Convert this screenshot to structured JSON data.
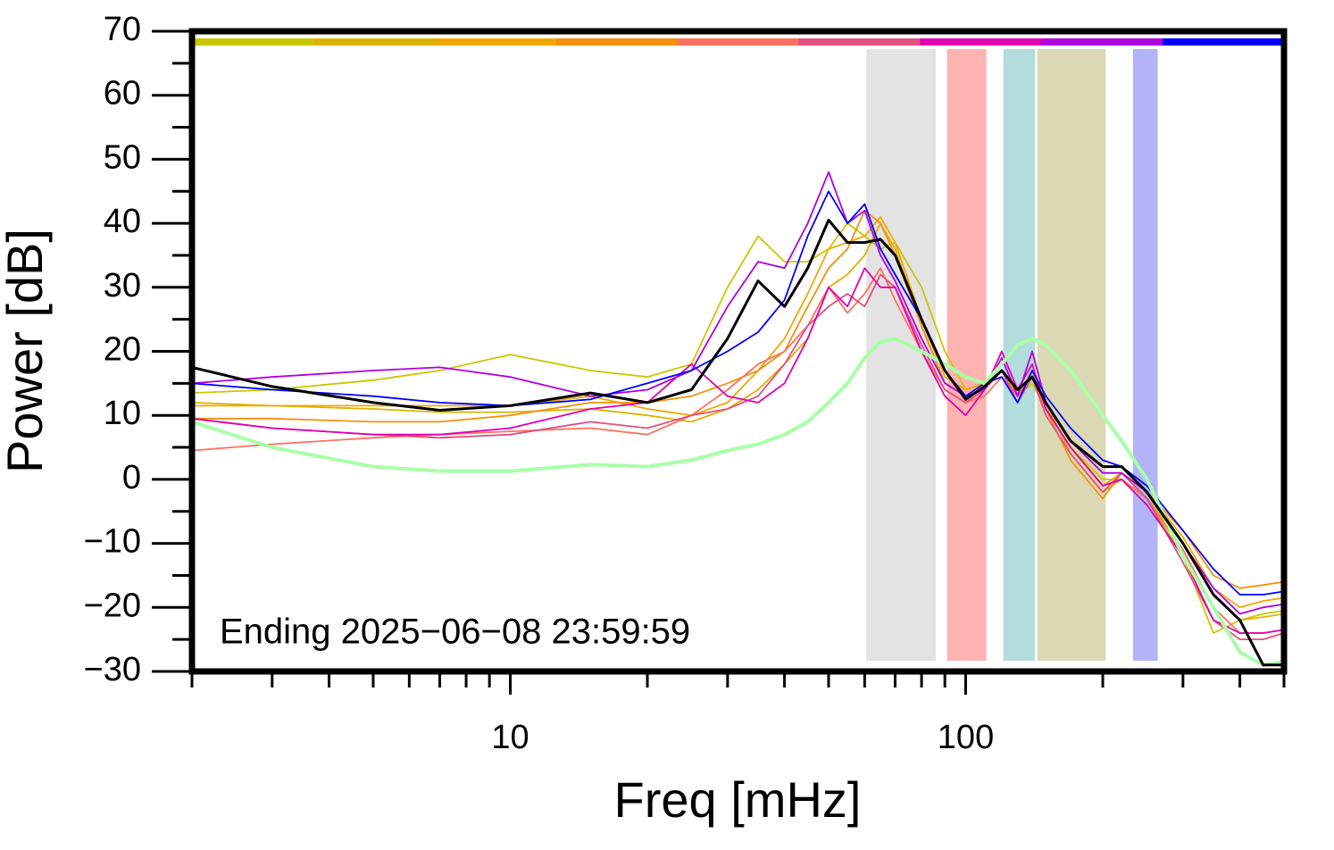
{
  "chart_data": {
    "type": "line",
    "xlabel": "Freq [mHz]",
    "ylabel": "Power [dB]",
    "annotation": "Ending 2025−06−08 23:59:59",
    "xscale": "log",
    "xlim": [
      2,
      500
    ],
    "ylim": [
      -30,
      70
    ],
    "xticks": [
      10,
      100
    ],
    "xminorticks": [
      2,
      3,
      4,
      5,
      6,
      7,
      8,
      9,
      20,
      30,
      40,
      50,
      60,
      70,
      80,
      90,
      200,
      300,
      400,
      500
    ],
    "yticks": [
      {
        "value": -30,
        "label": "−30"
      },
      {
        "value": -20,
        "label": "−20"
      },
      {
        "value": -10,
        "label": "−10"
      },
      0,
      10,
      20,
      30,
      40,
      50,
      60,
      70
    ],
    "yminorticks": [
      -25,
      -15,
      -5,
      5,
      15,
      25,
      35,
      45,
      55,
      65
    ],
    "bands": [
      {
        "from": 60.5,
        "to": 86,
        "color": "#e3e3e3"
      },
      {
        "from": 91,
        "to": 111,
        "color": "#ffb3b0"
      },
      {
        "from": 121,
        "to": 142,
        "color": "#b3dcdc"
      },
      {
        "from": 143.6,
        "to": 203,
        "color": "#dad9b3"
      },
      {
        "from": 233,
        "to": 264,
        "color": "#b3b3f8"
      }
    ],
    "x": [
      2,
      3,
      5,
      7,
      10,
      15,
      20,
      25,
      30,
      35,
      40,
      45,
      50,
      55,
      60,
      65,
      70,
      80,
      90,
      100,
      110,
      120,
      130,
      140,
      150,
      170,
      200,
      220,
      250,
      300,
      350,
      400,
      450,
      500
    ],
    "series": [
      {
        "color": "#c8c800",
        "values": [
          13.5,
          14,
          15.5,
          17,
          19.5,
          17,
          16,
          18,
          30,
          38,
          34,
          34,
          36,
          40,
          38,
          36,
          37,
          30,
          20,
          14,
          15,
          16,
          13,
          15,
          11,
          5,
          0,
          0,
          -3,
          -12,
          -24,
          -22,
          -21,
          -20.5
        ]
      },
      {
        "color": "#dcb400",
        "values": [
          12,
          11.5,
          11,
          10.5,
          10.5,
          11,
          10,
          9,
          11,
          14,
          18,
          22,
          30,
          32,
          35,
          40,
          36,
          24,
          15,
          13,
          15,
          17,
          13,
          16,
          12,
          4,
          -2,
          0,
          -3,
          -10,
          -18,
          -22,
          -21.5,
          -21
        ]
      },
      {
        "color": "#f0a800",
        "values": [
          11.5,
          11.5,
          11.5,
          11.5,
          11.5,
          13,
          11,
          10,
          12,
          17,
          22,
          29,
          36,
          37,
          38,
          41,
          37,
          25,
          16,
          14,
          15,
          16,
          13,
          16,
          11,
          5,
          -1,
          1,
          -2,
          -9,
          -17,
          -20,
          -19,
          -18.5
        ]
      },
      {
        "color": "#f5900c",
        "values": [
          9.5,
          9.5,
          9,
          9,
          10,
          12,
          12,
          13,
          15,
          17,
          20,
          27,
          33,
          36,
          42,
          40,
          35,
          24,
          15,
          13,
          15,
          17,
          13,
          17,
          11,
          3,
          -3,
          1,
          -2,
          -8,
          -15,
          -17,
          -16.5,
          -16
        ]
      },
      {
        "color": "#ff7060",
        "values": [
          4.5,
          5.5,
          6.5,
          7,
          7.5,
          8,
          7,
          10,
          14,
          18,
          20,
          24,
          30,
          26,
          29,
          33,
          28,
          20,
          14,
          12,
          13,
          16,
          13,
          16,
          11,
          5,
          -1,
          0,
          -3,
          -11,
          -20,
          -24,
          -24,
          -23.5
        ]
      },
      {
        "color": "#e05080",
        "values": [
          9.5,
          8,
          7,
          6.5,
          7,
          9,
          8,
          10,
          11,
          13,
          18,
          24,
          27,
          29,
          27,
          32,
          30,
          21,
          14,
          12,
          14,
          17,
          12,
          16,
          10,
          4,
          -2,
          1,
          -3,
          -13,
          -22,
          -25,
          -25,
          -24
        ]
      },
      {
        "color": "#e000b0",
        "values": [
          9.5,
          8,
          7,
          7,
          8,
          11,
          12,
          18,
          13,
          12,
          15,
          22,
          30,
          27,
          33,
          30,
          30,
          20,
          13,
          10,
          14,
          20,
          14,
          18,
          11,
          5,
          -1,
          0,
          -4,
          -12,
          -22,
          -24,
          -24,
          -23.5
        ]
      },
      {
        "color": "#b000e0",
        "values": [
          15,
          16,
          17,
          17.5,
          16,
          13,
          14,
          17,
          27,
          34,
          33,
          40,
          48,
          40,
          42,
          35,
          31,
          22,
          15,
          13,
          14,
          19,
          13,
          20,
          12,
          6,
          1,
          1,
          -2,
          -10,
          -17,
          -21,
          -20,
          -19.5
        ]
      },
      {
        "color": "#0000ff",
        "values": [
          15,
          14,
          13,
          12,
          11.5,
          12.5,
          15,
          17,
          20,
          23,
          28,
          38,
          45,
          40,
          43,
          36,
          32,
          25,
          17,
          13,
          15,
          16,
          12,
          17,
          13,
          8,
          3,
          2,
          -1,
          -8,
          -14,
          -18,
          -18,
          -17.5
        ]
      },
      {
        "color": "#a8ffa8",
        "width": 4,
        "values": [
          9,
          5,
          2,
          1.3,
          1.3,
          2.3,
          2,
          3,
          4.5,
          5.5,
          7,
          9,
          12,
          15,
          19,
          21.5,
          22,
          20,
          18,
          16,
          15,
          18,
          21,
          22,
          21,
          17,
          10,
          6,
          0,
          -12,
          -20,
          -27,
          -29,
          -28.5
        ]
      },
      {
        "color": "#000000",
        "width": 3,
        "values": [
          17.5,
          14.5,
          12,
          10.8,
          11.5,
          13.5,
          12,
          14,
          22,
          31,
          27,
          33,
          40.5,
          37,
          37,
          37.5,
          35,
          25,
          17,
          12.5,
          14.5,
          17,
          14,
          16,
          12,
          6,
          2,
          2,
          -2,
          -10,
          -18,
          -22,
          -29,
          -29
        ]
      }
    ],
    "strip_series": 9
  }
}
